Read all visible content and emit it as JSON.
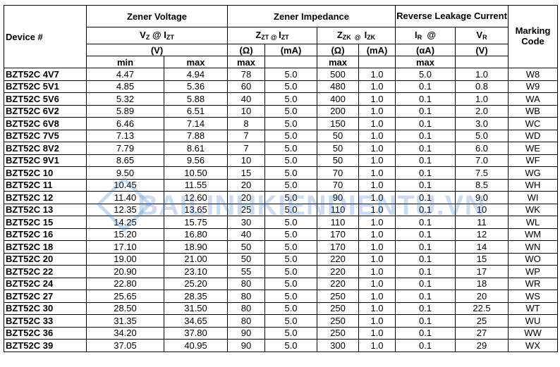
{
  "header": {
    "device": "Device #",
    "zener_voltage": "Zener Voltage",
    "zener_impedance": "Zener Impedance",
    "reverse_leakage": "Reverse Leakage Current",
    "marking": "Marking Code",
    "vz": [
      "V",
      "Z",
      " @ I",
      "ZT"
    ],
    "zzt": [
      "Z",
      "ZT",
      " @ ",
      "I",
      "ZT"
    ],
    "zzk": [
      "Z",
      "ZK",
      "  @  ",
      "I",
      "ZK"
    ],
    "ir": [
      "I",
      "R",
      "  @"
    ],
    "vr": [
      "V",
      "R"
    ],
    "units": [
      "(V)",
      "(Ω)",
      "(mA)",
      "(Ω)",
      "(mA)",
      "(αA)",
      "(V)"
    ],
    "limits": [
      "min",
      "max",
      "max",
      "max",
      "max"
    ]
  },
  "watermark": "BAILINHKIENDIENTU.VN",
  "table": {
    "rows": [
      [
        "BZT52C 4V7",
        "4.47",
        "4.94",
        "78",
        "5.0",
        "500",
        "1.0",
        "5.0",
        "1.0",
        "W8"
      ],
      [
        "BZT52C 5V1",
        "4.85",
        "5.36",
        "60",
        "5.0",
        "480",
        "1.0",
        "0.1",
        "0.8",
        "W9"
      ],
      [
        "BZT52C 5V6",
        "5.32",
        "5.88",
        "40",
        "5.0",
        "400",
        "1.0",
        "0.1",
        "1.0",
        "WA"
      ],
      [
        "BZT52C 6V2",
        "5.89",
        "6.51",
        "10",
        "5.0",
        "200",
        "1.0",
        "0.1",
        "2.0",
        "WB"
      ],
      [
        "BZT52C 6V8",
        "6.46",
        "7.14",
        "8",
        "5.0",
        "150",
        "1.0",
        "0.1",
        "3.0",
        "WC"
      ],
      [
        "BZT52C 7V5",
        "7.13",
        "7.88",
        "7",
        "5.0",
        "50",
        "1.0",
        "0.1",
        "5.0",
        "WD"
      ],
      [
        "BZT52C 8V2",
        "7.79",
        "8.61",
        "7",
        "5.0",
        "50",
        "1.0",
        "0.1",
        "6.0",
        "WE"
      ],
      [
        "BZT52C 9V1",
        "8.65",
        "9.56",
        "10",
        "5.0",
        "50",
        "1.0",
        "0.1",
        "7.0",
        "WF"
      ],
      [
        "BZT52C 10",
        "9.50",
        "10.50",
        "15",
        "5.0",
        "70",
        "1.0",
        "0.1",
        "7.5",
        "WG"
      ],
      [
        "BZT52C 11",
        "10.45",
        "11.55",
        "20",
        "5.0",
        "70",
        "1.0",
        "0.1",
        "8.5",
        "WH"
      ],
      [
        "BZT52C 12",
        "11.40",
        "12.60",
        "20",
        "5.0",
        "90",
        "1.0",
        "0.1",
        "9.0",
        "WI"
      ],
      [
        "BZT52C 13",
        "12.35",
        "13.65",
        "25",
        "5.0",
        "110",
        "1.0",
        "0.1",
        "10",
        "WK"
      ],
      [
        "BZT52C 15",
        "14.25",
        "15.75",
        "30",
        "5.0",
        "110",
        "1.0",
        "0.1",
        "11",
        "WL"
      ],
      [
        "BZT52C 16",
        "15.20",
        "16.80",
        "40",
        "5.0",
        "170",
        "1.0",
        "0.1",
        "12",
        "WM"
      ],
      [
        "BZT52C 18",
        "17.10",
        "18.90",
        "50",
        "5.0",
        "170",
        "1.0",
        "0.1",
        "14",
        "WN"
      ],
      [
        "BZT52C 20",
        "19.00",
        "21.00",
        "50",
        "5.0",
        "220",
        "1.0",
        "0.1",
        "15",
        "WO"
      ],
      [
        "BZT52C 22",
        "20.90",
        "23.10",
        "55",
        "5.0",
        "220",
        "1.0",
        "0.1",
        "17",
        "WP"
      ],
      [
        "BZT52C 24",
        "22.80",
        "25.20",
        "80",
        "5.0",
        "220",
        "1.0",
        "0.1",
        "18",
        "WR"
      ],
      [
        "BZT52C 27",
        "25.65",
        "28.35",
        "80",
        "5.0",
        "250",
        "1.0",
        "0.1",
        "20",
        "WS"
      ],
      [
        "BZT52C 30",
        "28.50",
        "31.50",
        "80",
        "5.0",
        "250",
        "1.0",
        "0.1",
        "22.5",
        "WT"
      ],
      [
        "BZT52C 33",
        "31.35",
        "34.65",
        "80",
        "5.0",
        "250",
        "1.0",
        "0.1",
        "25",
        "WU"
      ],
      [
        "BZT52C 36",
        "34.20",
        "37.80",
        "90",
        "5.0",
        "250",
        "1.0",
        "0.1",
        "27",
        "WW"
      ],
      [
        "BZT52C 39",
        "37.05",
        "40.95",
        "90",
        "5.0",
        "300",
        "1.0",
        "0.1",
        "29",
        "WX"
      ]
    ]
  }
}
